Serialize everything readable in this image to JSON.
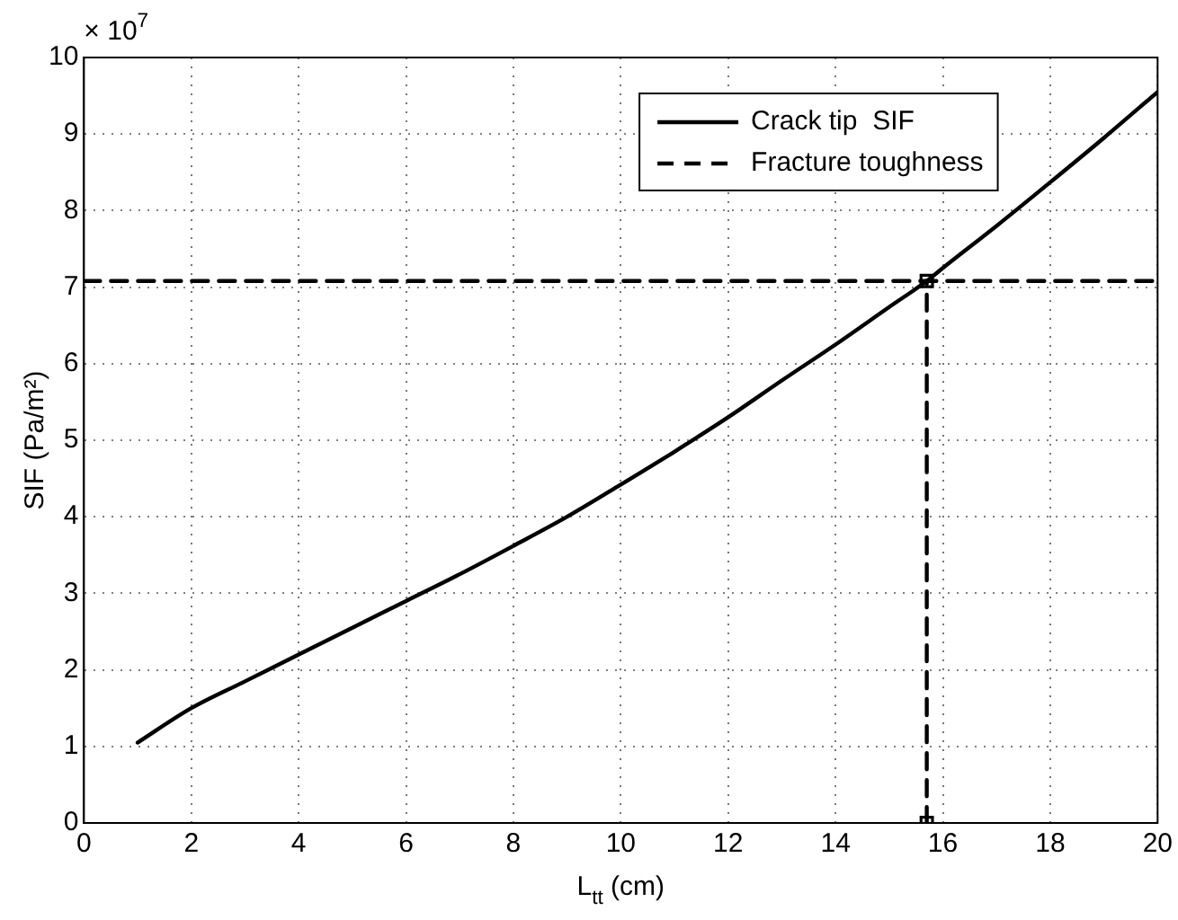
{
  "chart_data": {
    "type": "line",
    "xlabel": "L$_{tt}$ (cm)",
    "ylabel": "SIF (Pa/m²)",
    "annotations": [
      "× 10$^{7}$"
    ],
    "xlim": [
      0,
      20
    ],
    "xticks": [
      0,
      2,
      4,
      6,
      8,
      10,
      12,
      14,
      16,
      18,
      20
    ],
    "ylim": [
      0,
      10
    ],
    "yticks": [
      0,
      1,
      2,
      3,
      4,
      5,
      6,
      7,
      8,
      9,
      10
    ],
    "grid": true,
    "legend": "top",
    "marker": "none",
    "series": [
      {
        "name": "Crack tip  SIF",
        "color": "#000000",
        "line_style": "solid",
        "x": [
          1,
          2,
          3,
          4,
          5,
          6,
          7,
          8,
          9,
          10,
          11,
          12,
          13,
          14,
          15,
          15.7,
          16,
          17,
          18,
          19,
          20
        ],
        "values": [
          1.05,
          1.5,
          1.85,
          2.2,
          2.55,
          2.9,
          3.25,
          3.62,
          4.0,
          4.42,
          4.85,
          5.3,
          5.78,
          6.25,
          6.74,
          7.08,
          7.25,
          7.8,
          8.37,
          8.95,
          9.55
        ]
      },
      {
        "name": "Fracture toughness",
        "color": "#000000",
        "line_style": "dashed",
        "x": [
          0,
          20
        ],
        "values": [
          7.08,
          7.08
        ]
      },
      {
        "color": "#000000",
        "line_style": "dashed",
        "marker": "square",
        "x": [
          15.7,
          15.7
        ],
        "values": [
          0,
          7.08
        ]
      }
    ]
  }
}
